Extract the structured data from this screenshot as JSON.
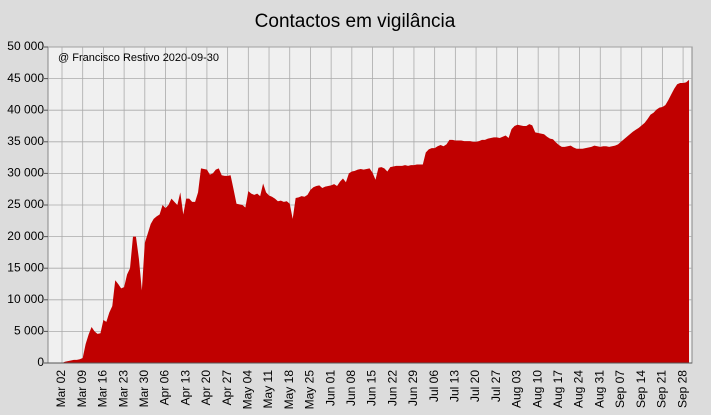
{
  "chart_data": {
    "type": "area",
    "title": "Contactos em vigilância",
    "annotation": "@ Francisco Restivo 2020-09-30",
    "color": "#c00000",
    "grid": true,
    "ylim": [
      0,
      50000
    ],
    "yticks": [
      0,
      {
        "value": 5000,
        "label": "5 000"
      },
      {
        "value": 10000,
        "label": "10 000"
      },
      {
        "value": 15000,
        "label": "15 000"
      },
      {
        "value": 20000,
        "label": "20 000"
      },
      {
        "value": 25000,
        "label": "25 000"
      },
      {
        "value": 30000,
        "label": "30 000"
      },
      {
        "value": 35000,
        "label": "35 000"
      },
      {
        "value": 40000,
        "label": "40 000"
      },
      {
        "value": 45000,
        "label": "45 000"
      },
      {
        "value": 50000,
        "label": "50 000"
      }
    ],
    "categories": [
      "Mar 02",
      null,
      null,
      null,
      null,
      null,
      null,
      "Mar 09",
      null,
      null,
      null,
      null,
      null,
      null,
      "Mar 16",
      null,
      null,
      null,
      null,
      null,
      null,
      "Mar 23",
      null,
      null,
      null,
      null,
      null,
      null,
      "Mar 30",
      null,
      null,
      null,
      null,
      null,
      null,
      "Apr 06",
      null,
      null,
      null,
      null,
      null,
      null,
      "Apr 13",
      null,
      null,
      null,
      null,
      null,
      null,
      "Apr 20",
      null,
      null,
      null,
      null,
      null,
      null,
      "Apr 27",
      null,
      null,
      null,
      null,
      null,
      null,
      "May 04",
      null,
      null,
      null,
      null,
      null,
      null,
      "May 11",
      null,
      null,
      null,
      null,
      null,
      null,
      "May 18",
      null,
      null,
      null,
      null,
      null,
      null,
      "May 25",
      null,
      null,
      null,
      null,
      null,
      null,
      "Jun 01",
      null,
      null,
      null,
      null,
      null,
      null,
      "Jun 08",
      null,
      null,
      null,
      null,
      null,
      null,
      "Jun 15",
      null,
      null,
      null,
      null,
      null,
      null,
      "Jun 22",
      null,
      null,
      null,
      null,
      null,
      null,
      "Jun 29",
      null,
      null,
      null,
      null,
      null,
      null,
      "Jul 06",
      null,
      null,
      null,
      null,
      null,
      null,
      "Jul 13",
      null,
      null,
      null,
      null,
      null,
      null,
      "Jul 20",
      null,
      null,
      null,
      null,
      null,
      null,
      "Jul 27",
      null,
      null,
      null,
      null,
      null,
      null,
      "Aug 03",
      null,
      null,
      null,
      null,
      null,
      null,
      "Aug 10",
      null,
      null,
      null,
      null,
      null,
      null,
      "Aug 17",
      null,
      null,
      null,
      null,
      null,
      null,
      "Aug 24",
      null,
      null,
      null,
      null,
      null,
      null,
      "Aug 31",
      null,
      null,
      null,
      null,
      null,
      null,
      "Sep 07",
      null,
      null,
      null,
      null,
      null,
      null,
      "Sep 14",
      null,
      null,
      null,
      null,
      null,
      null,
      "Sep 21",
      null,
      null,
      null,
      null,
      null,
      null,
      "Sep 28",
      null,
      null
    ],
    "values": [
      0,
      200,
      300,
      400,
      500,
      500,
      600,
      800,
      3000,
      4500,
      5700,
      5000,
      4600,
      4700,
      6800,
      6500,
      8000,
      9000,
      13100,
      12500,
      11800,
      12000,
      14000,
      15000,
      20000,
      20000,
      16500,
      11500,
      19000,
      20500,
      22000,
      22800,
      23200,
      23500,
      25000,
      24500,
      25000,
      26000,
      25500,
      25000,
      27000,
      23500,
      26000,
      26000,
      25500,
      25500,
      27000,
      30800,
      30700,
      30600,
      29800,
      30000,
      30600,
      30800,
      29700,
      29600,
      29600,
      29700,
      27500,
      25200,
      25100,
      25000,
      24600,
      27200,
      26800,
      26600,
      26800,
      26400,
      28400,
      27000,
      26500,
      26300,
      26000,
      25600,
      25700,
      25500,
      25600,
      25200,
      22800,
      26100,
      26200,
      26400,
      26300,
      26600,
      27400,
      27800,
      28000,
      28100,
      27700,
      27900,
      28000,
      28100,
      28300,
      28000,
      28700,
      29200,
      28600,
      30000,
      30300,
      30400,
      30600,
      30700,
      30600,
      30700,
      30800,
      30100,
      29000,
      30900,
      31000,
      30800,
      30300,
      31000,
      31100,
      31200,
      31200,
      31200,
      31300,
      31200,
      31300,
      31300,
      31400,
      31400,
      31400,
      33300,
      33800,
      34000,
      34000,
      34300,
      34500,
      34300,
      34600,
      35300,
      35300,
      35200,
      35200,
      35200,
      35100,
      35100,
      35100,
      35000,
      35000,
      35100,
      35300,
      35300,
      35500,
      35600,
      35700,
      35700,
      35600,
      35800,
      36000,
      35600,
      37000,
      37500,
      37700,
      37600,
      37500,
      37500,
      37800,
      37600,
      36500,
      36400,
      36300,
      36200,
      35800,
      35500,
      35400,
      34900,
      34500,
      34200,
      34200,
      34300,
      34400,
      34100,
      33900,
      33900,
      33900,
      34000,
      34100,
      34200,
      34400,
      34300,
      34200,
      34300,
      34300,
      34200,
      34300,
      34400,
      34600,
      35000,
      35400,
      35800,
      36200,
      36600,
      36900,
      37200,
      37600,
      38000,
      38600,
      39300,
      39600,
      40100,
      40400,
      40500,
      40800,
      41600,
      42500,
      43400,
      44100,
      44300,
      44300,
      44400,
      44800
    ]
  }
}
